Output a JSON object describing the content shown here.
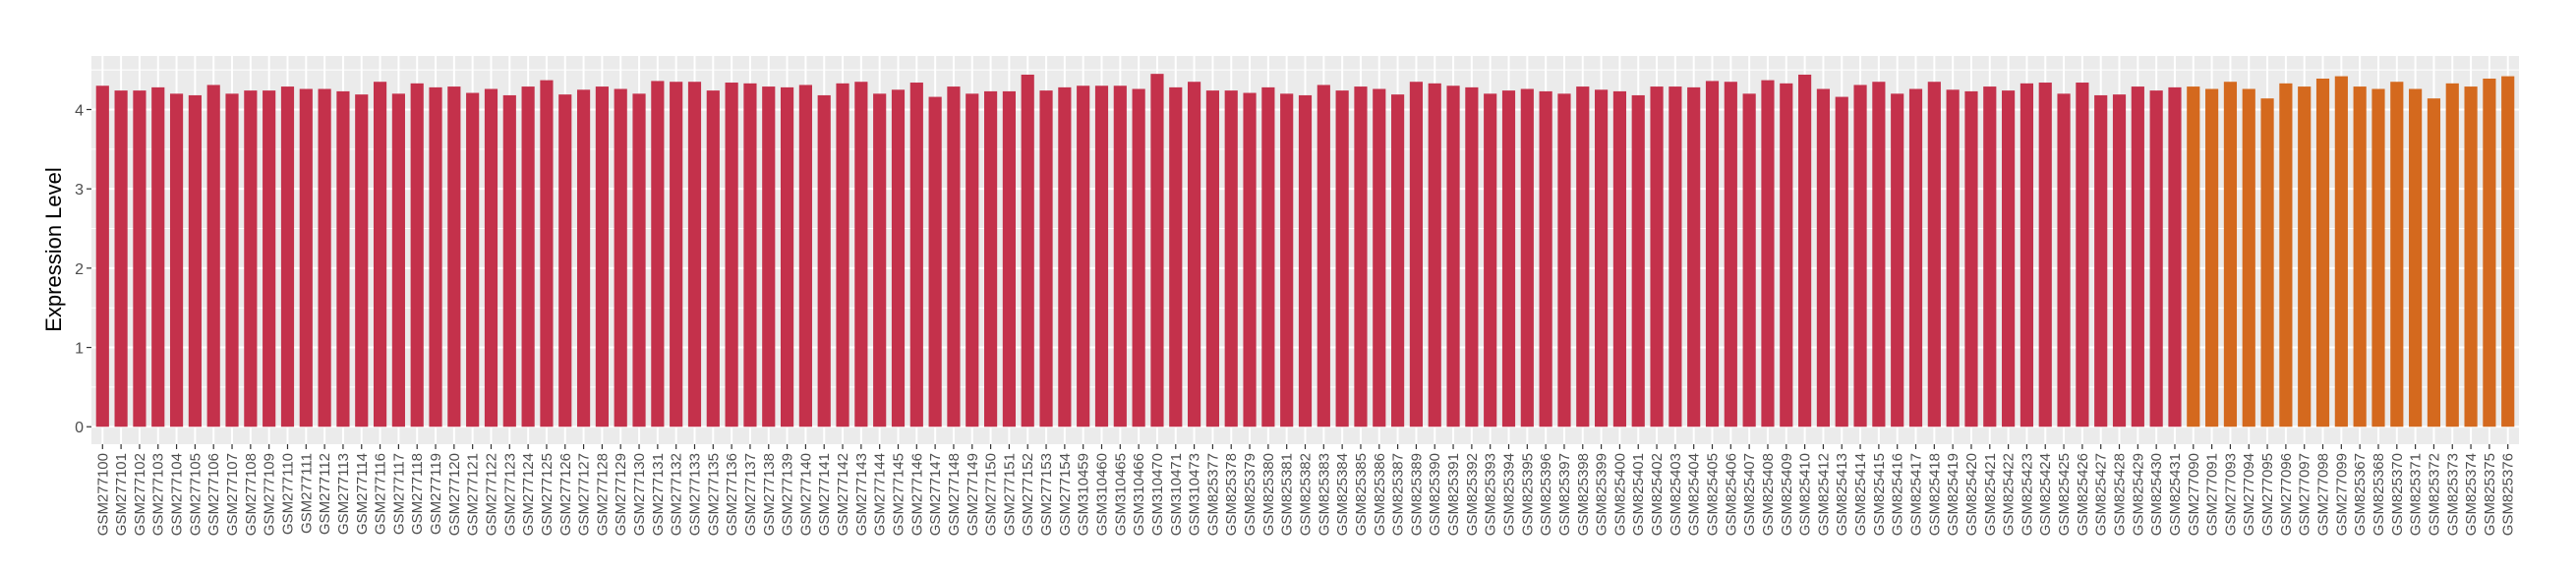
{
  "chart_data": {
    "type": "bar",
    "title": "",
    "xlabel": "",
    "ylabel": "Expression Level",
    "ylim": [
      -0.22,
      4.675
    ],
    "yticks": [
      "0",
      "1",
      "2",
      "3",
      "4"
    ],
    "grid": true,
    "legend": "none",
    "panel_background": "#EBEBEB",
    "series": [
      {
        "color": "#C4314B",
        "categories": [
          "GSM277100",
          "GSM277101",
          "GSM277102",
          "GSM277103",
          "GSM277104",
          "GSM277105",
          "GSM277106",
          "GSM277107",
          "GSM277108",
          "GSM277109",
          "GSM277110",
          "GSM277111",
          "GSM277112",
          "GSM277113",
          "GSM277114",
          "GSM277116",
          "GSM277117",
          "GSM277118",
          "GSM277119",
          "GSM277120",
          "GSM277121",
          "GSM277122",
          "GSM277123",
          "GSM277124",
          "GSM277125",
          "GSM277126",
          "GSM277127",
          "GSM277128",
          "GSM277129",
          "GSM277130",
          "GSM277131",
          "GSM277132",
          "GSM277133",
          "GSM277135",
          "GSM277136",
          "GSM277137",
          "GSM277138",
          "GSM277139",
          "GSM277140",
          "GSM277141",
          "GSM277142",
          "GSM277143",
          "GSM277144",
          "GSM277145",
          "GSM277146",
          "GSM277147",
          "GSM277148",
          "GSM277149",
          "GSM277150",
          "GSM277151",
          "GSM277152",
          "GSM277153",
          "GSM277154",
          "GSM310459",
          "GSM310460",
          "GSM310465",
          "GSM310466",
          "GSM310470",
          "GSM310471",
          "GSM310473",
          "GSM825377",
          "GSM825378",
          "GSM825379",
          "GSM825380",
          "GSM825381",
          "GSM825382",
          "GSM825383",
          "GSM825384",
          "GSM825385",
          "GSM825386",
          "GSM825387",
          "GSM825389",
          "GSM825390",
          "GSM825391",
          "GSM825392",
          "GSM825393",
          "GSM825394",
          "GSM825395",
          "GSM825396",
          "GSM825397",
          "GSM825398",
          "GSM825399",
          "GSM825400",
          "GSM825401",
          "GSM825402",
          "GSM825403",
          "GSM825404",
          "GSM825405",
          "GSM825406",
          "GSM825407",
          "GSM825408",
          "GSM825409",
          "GSM825410",
          "GSM825412",
          "GSM825413",
          "GSM825414",
          "GSM825415",
          "GSM825416",
          "GSM825417",
          "GSM825418",
          "GSM825419",
          "GSM825420",
          "GSM825421",
          "GSM825422",
          "GSM825423",
          "GSM825424",
          "GSM825425",
          "GSM825426",
          "GSM825427",
          "GSM825428",
          "GSM825429",
          "GSM825430",
          "GSM825431"
        ],
        "values": [
          4.3,
          4.24,
          4.24,
          4.28,
          4.2,
          4.18,
          4.31,
          4.2,
          4.24,
          4.24,
          4.29,
          4.26,
          4.26,
          4.23,
          4.19,
          4.35,
          4.2,
          4.33,
          4.28,
          4.29,
          4.21,
          4.26,
          4.18,
          4.29,
          4.37,
          4.19,
          4.25,
          4.29,
          4.26,
          4.2,
          4.36,
          4.35,
          4.35,
          4.24,
          4.34,
          4.33,
          4.29,
          4.28,
          4.31,
          4.18,
          4.33,
          4.35,
          4.2,
          4.25,
          4.34,
          4.16,
          4.29,
          4.2,
          4.23,
          4.23,
          4.44,
          4.24,
          4.28,
          4.3,
          4.3,
          4.3,
          4.26,
          4.45,
          4.28,
          4.35,
          4.24,
          4.24,
          4.21,
          4.28,
          4.2,
          4.18,
          4.31,
          4.24,
          4.29,
          4.26,
          4.19,
          4.35,
          4.33,
          4.3,
          4.28,
          4.2,
          4.24,
          4.26,
          4.23,
          4.2,
          4.29,
          4.25,
          4.23,
          4.18,
          4.29,
          4.29,
          4.28,
          4.36,
          4.35,
          4.2,
          4.37,
          4.33,
          4.44,
          4.26,
          4.16,
          4.31,
          4.35,
          4.2,
          4.26,
          4.35,
          4.25,
          4.23,
          4.29,
          4.24,
          4.33,
          4.34,
          4.2,
          4.34,
          4.18,
          4.19,
          4.29,
          4.24,
          4.28
        ]
      },
      {
        "color": "#D4691E",
        "categories": [
          "GSM277090",
          "GSM277091",
          "GSM277093",
          "GSM277094",
          "GSM277095",
          "GSM277096",
          "GSM277097",
          "GSM277098",
          "GSM277099",
          "GSM825367",
          "GSM825368",
          "GSM825370",
          "GSM825371",
          "GSM825372",
          "GSM825373",
          "GSM825374",
          "GSM825375",
          "GSM825376"
        ],
        "values": [
          4.29,
          4.26,
          4.35,
          4.26,
          4.14,
          4.33,
          4.29,
          4.39,
          4.42,
          4.29,
          4.26,
          4.35,
          4.26,
          4.14,
          4.33,
          4.29,
          4.39,
          4.42
        ]
      }
    ]
  }
}
